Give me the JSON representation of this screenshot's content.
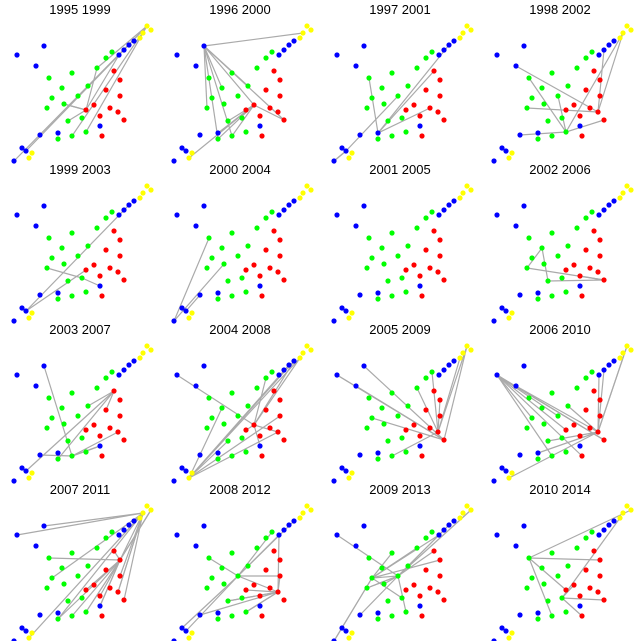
{
  "panels": [
    {
      "title": "1995 1999"
    },
    {
      "title": "1996 2000"
    },
    {
      "title": "1997 2001"
    },
    {
      "title": "1998 2002"
    },
    {
      "title": "1999 2003"
    },
    {
      "title": "2000 2004"
    },
    {
      "title": "2001 2005"
    },
    {
      "title": "2002 2006"
    },
    {
      "title": "2003 2007"
    },
    {
      "title": "2004 2008"
    },
    {
      "title": "2005 2009"
    },
    {
      "title": "2006 2010"
    },
    {
      "title": "2007 2011"
    },
    {
      "title": "2008 2012"
    },
    {
      "title": "2009 2013"
    },
    {
      "title": "2010 2014"
    }
  ]
}
